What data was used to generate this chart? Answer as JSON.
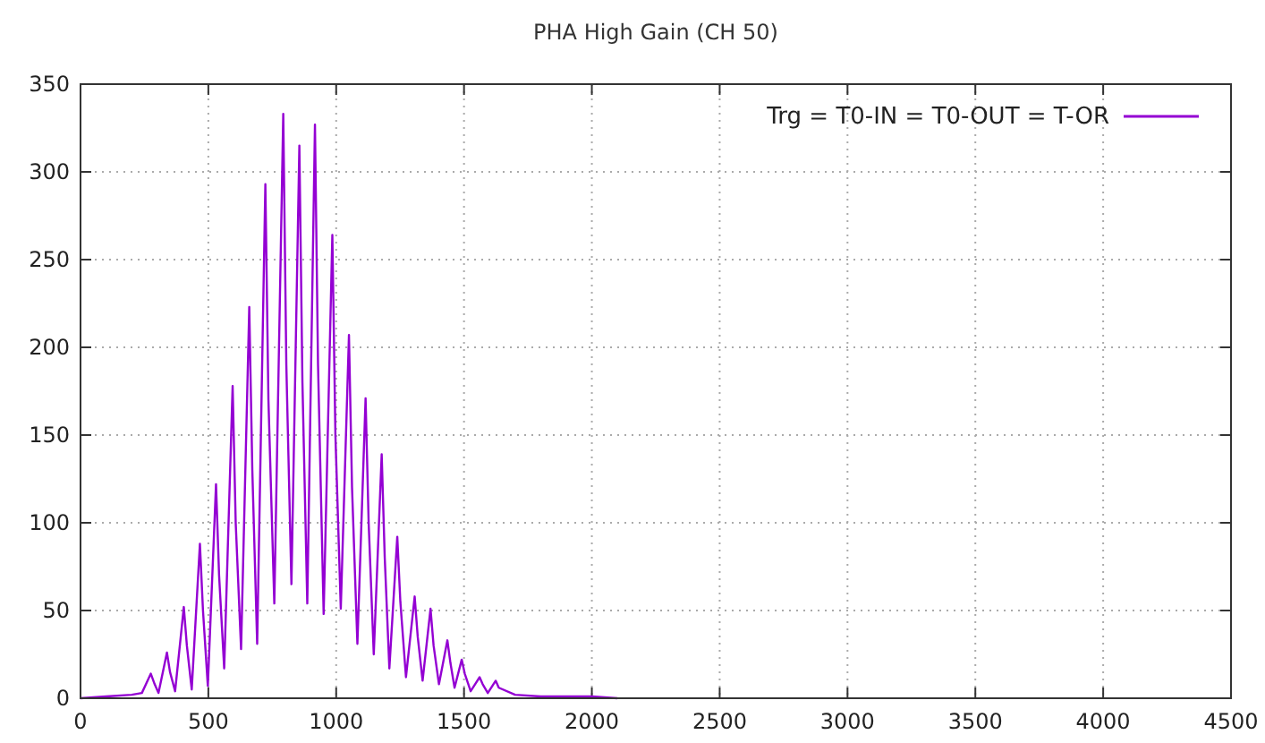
{
  "chart_data": {
    "type": "line",
    "title": "PHA High Gain (CH 50)",
    "x": [
      0,
      100,
      200,
      240,
      275,
      290,
      305,
      338,
      350,
      370,
      404,
      416,
      435,
      467,
      479,
      498,
      530,
      542,
      562,
      595,
      607,
      628,
      660,
      672,
      691,
      723,
      735,
      758,
      793,
      805,
      825,
      856,
      868,
      887,
      917,
      929,
      951,
      985,
      997,
      1018,
      1050,
      1062,
      1083,
      1115,
      1127,
      1147,
      1178,
      1190,
      1208,
      1239,
      1251,
      1273,
      1307,
      1319,
      1338,
      1369,
      1381,
      1402,
      1435,
      1447,
      1463,
      1491,
      1503,
      1526,
      1561,
      1573,
      1593,
      1624,
      1636,
      1700,
      1800,
      1900,
      2000,
      2100
    ],
    "series": [
      {
        "name": "Trg = T0-IN = T0-OUT = T-OR",
        "color": "#9400d3",
        "values": [
          0,
          1,
          2,
          3,
          14,
          8,
          3,
          26,
          15,
          4,
          52,
          30,
          5,
          88,
          50,
          7,
          122,
          70,
          17,
          178,
          100,
          28,
          223,
          130,
          31,
          293,
          170,
          54,
          333,
          190,
          65,
          315,
          180,
          54,
          327,
          190,
          48,
          264,
          150,
          51,
          207,
          120,
          31,
          171,
          100,
          25,
          139,
          80,
          17,
          92,
          55,
          12,
          58,
          35,
          10,
          51,
          30,
          8,
          33,
          20,
          6,
          22,
          14,
          4,
          12,
          8,
          3,
          10,
          6,
          2,
          1,
          1,
          1,
          0
        ]
      }
    ],
    "xlim": [
      0,
      4500
    ],
    "ylim": [
      0,
      350
    ],
    "xticks": [
      0,
      500,
      1000,
      1500,
      2000,
      2500,
      3000,
      3500,
      4000,
      4500
    ],
    "yticks": [
      0,
      50,
      100,
      150,
      200,
      250,
      300,
      350
    ],
    "grid": true,
    "legend": "top right",
    "marker": "none",
    "line_style": "solid"
  }
}
